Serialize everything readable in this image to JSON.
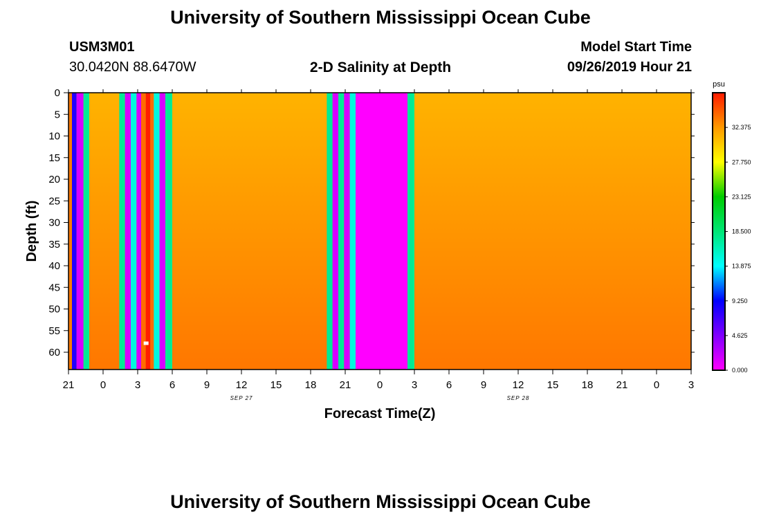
{
  "page_title": "University of Southern Mississippi Ocean Cube",
  "footer_title": "University of Southern Mississippi Ocean Cube",
  "station": {
    "id": "USM3M01",
    "coords": "30.0420N 88.6470W"
  },
  "model": {
    "label": "Model Start Time",
    "start": "09/26/2019 Hour 21"
  },
  "chart_data": {
    "type": "heatmap",
    "title": "2-D Salinity at Depth",
    "xlabel": "Forecast Time(Z)",
    "ylabel": "Depth (ft)",
    "x_unit": "forecast hours from 09/26/2019 21Z",
    "xlim": [
      0,
      54
    ],
    "ylim": [
      0,
      64
    ],
    "x_tick_values": [
      0,
      3,
      6,
      9,
      12,
      15,
      18,
      21,
      24,
      27,
      30,
      33,
      36,
      39,
      42,
      45,
      48,
      51,
      54
    ],
    "x_tick_labels": [
      "21",
      "0",
      "3",
      "6",
      "9",
      "12",
      "15",
      "18",
      "21",
      "0",
      "3",
      "6",
      "9",
      "12",
      "15",
      "18",
      "21",
      "0",
      "3"
    ],
    "date_labels": [
      {
        "text": "SEP 27",
        "hour": 15
      },
      {
        "text": "SEP 28",
        "hour": 39
      }
    ],
    "y_ticks": [
      0,
      5,
      10,
      15,
      20,
      25,
      30,
      35,
      40,
      45,
      50,
      55,
      60
    ],
    "background_field": {
      "surface_psu": 31.2,
      "bottom_psu": 33.6
    },
    "columns": [
      {
        "x0": 0.0,
        "x1": 0.3,
        "psu": 33.5
      },
      {
        "x0": 0.3,
        "x1": 0.7,
        "psu": 8.0
      },
      {
        "x0": 0.7,
        "x1": 1.3,
        "psu": 1.5
      },
      {
        "x0": 1.3,
        "x1": 1.8,
        "psu": 17.5
      },
      {
        "x0": 4.4,
        "x1": 4.9,
        "psu": 17.5
      },
      {
        "x0": 4.9,
        "x1": 5.4,
        "psu": 1.5
      },
      {
        "x0": 5.4,
        "x1": 5.9,
        "psu": 15.0
      },
      {
        "x0": 5.9,
        "x1": 6.3,
        "psu": 1.5
      },
      {
        "x0": 6.3,
        "x1": 6.7,
        "psu": 34.0
      },
      {
        "x0": 6.7,
        "x1": 7.1,
        "psu": 36.8
      },
      {
        "x0": 7.1,
        "x1": 7.4,
        "psu": 34.0
      },
      {
        "x0": 7.4,
        "x1": 7.9,
        "psu": 15.0
      },
      {
        "x0": 7.9,
        "x1": 8.4,
        "psu": 1.5
      },
      {
        "x0": 8.4,
        "x1": 9.0,
        "psu": 17.5
      },
      {
        "x0": 22.4,
        "x1": 22.9,
        "psu": 17.5
      },
      {
        "x0": 22.9,
        "x1": 23.4,
        "psu": 1.5
      },
      {
        "x0": 23.4,
        "x1": 23.9,
        "psu": 17.5
      },
      {
        "x0": 23.9,
        "x1": 24.4,
        "psu": 1.5
      },
      {
        "x0": 24.4,
        "x1": 24.9,
        "psu": 15.0
      },
      {
        "x0": 24.9,
        "x1": 29.4,
        "psu": 0.0
      },
      {
        "x0": 29.4,
        "x1": 30.0,
        "psu": 17.5
      }
    ],
    "marker": {
      "hour": 6.7,
      "depth": 58,
      "color": "#ffffff"
    },
    "colorbar": {
      "unit": "psu",
      "min": 0.0,
      "max": 37.0,
      "tick_values": [
        0.0,
        4.625,
        9.25,
        13.875,
        18.5,
        23.125,
        27.75,
        32.375
      ],
      "tick_labels": [
        "0.000",
        "4.625",
        "9.250",
        "13.875",
        "18.500",
        "23.125",
        "27.750",
        "32.375"
      ],
      "stops": [
        {
          "psu": 0.0,
          "color": "#ff00ff"
        },
        {
          "psu": 4.625,
          "color": "#8000ff"
        },
        {
          "psu": 9.25,
          "color": "#0000ff"
        },
        {
          "psu": 13.875,
          "color": "#00ffff"
        },
        {
          "psu": 18.5,
          "color": "#00e676"
        },
        {
          "psu": 23.125,
          "color": "#00cc00"
        },
        {
          "psu": 27.75,
          "color": "#ffff00"
        },
        {
          "psu": 32.375,
          "color": "#ff9900"
        },
        {
          "psu": 37.0,
          "color": "#ff1a00"
        }
      ]
    }
  }
}
